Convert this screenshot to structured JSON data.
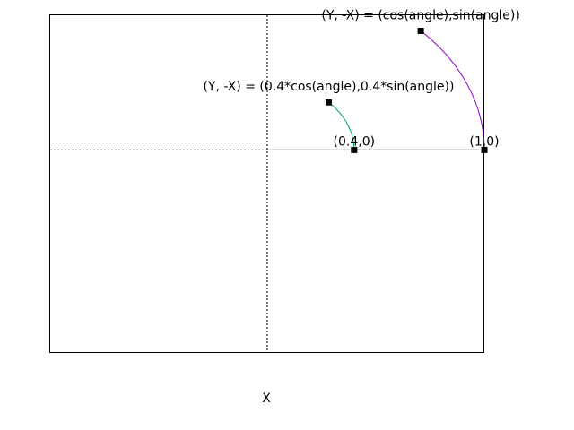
{
  "chart_data": {
    "type": "line",
    "xlabel": "X",
    "ylabel": "",
    "xlim": [
      -1,
      1
    ],
    "ylim": [
      -1.2,
      0.8
    ],
    "grid": false,
    "zero_axes": true,
    "series": [
      {
        "label": "(Y, -X) = (cos(angle),sin(angle))",
        "radius": 1.0,
        "angle_range_deg": [
          0,
          45
        ],
        "start_point_label": "(1,0)",
        "color": "#9400d3"
      },
      {
        "label": "(Y, -X) = (0.4*cos(angle),0.4*sin(angle))",
        "radius": 0.4,
        "angle_range_deg": [
          0,
          45
        ],
        "start_point_label": "(0.4,0)",
        "color": "#009e73"
      }
    ],
    "colors": {
      "frame": "#000000",
      "zero_line": "#000000",
      "marker": "#000000"
    }
  }
}
